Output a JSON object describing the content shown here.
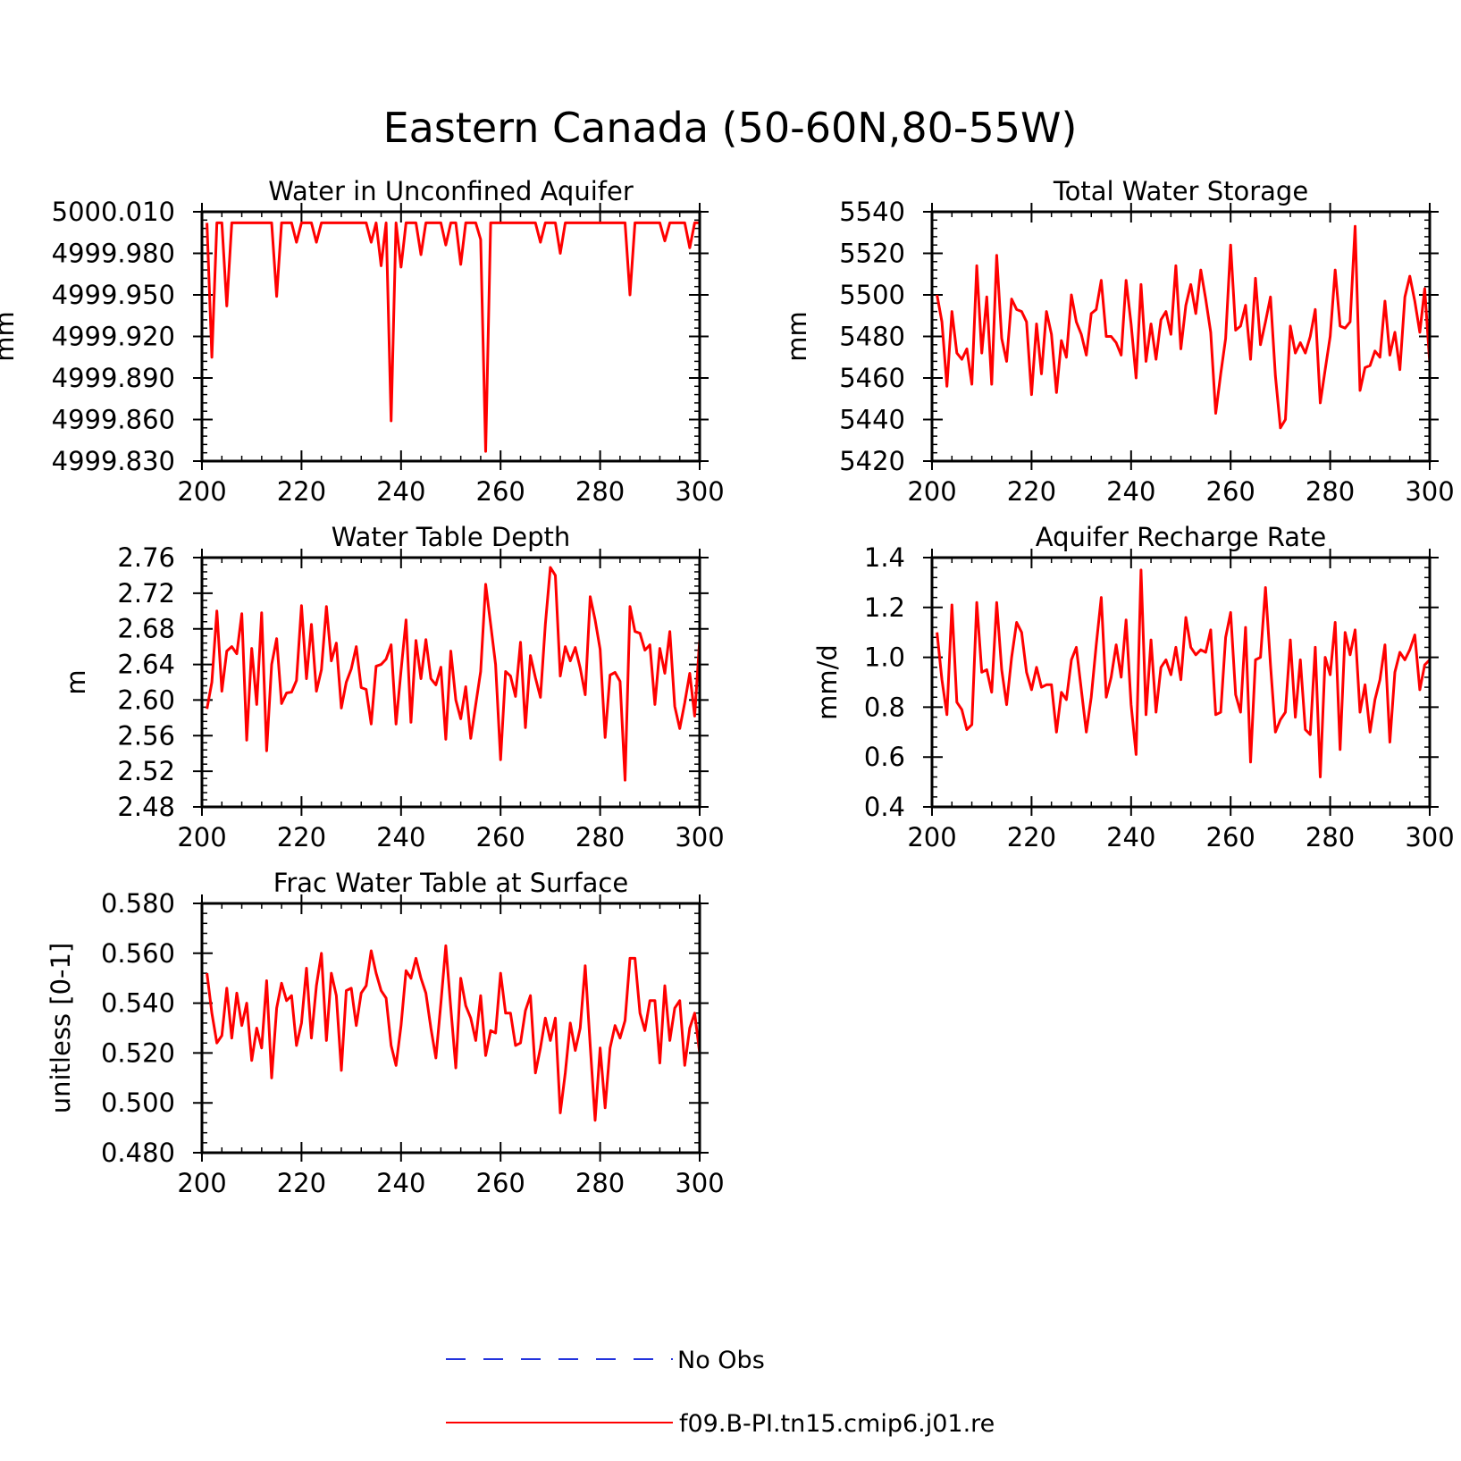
{
  "figure": {
    "title": "Eastern Canada (50-60N,80-55W)"
  },
  "legend": {
    "entries": [
      {
        "label": "No Obs",
        "color": "#2233dd",
        "style": "dashed"
      },
      {
        "label": "f09.B-PI.tn15.cmip6.j01.re",
        "color": "#ff0000",
        "style": "solid"
      }
    ]
  },
  "chart_data": [
    {
      "type": "line",
      "title": "Water in Unconfined Aquifer",
      "ylabel": "mm",
      "xlim": [
        200,
        300
      ],
      "ylim": [
        4999.83,
        5000.01
      ],
      "xticks": [
        200,
        220,
        240,
        260,
        280,
        300
      ],
      "yticks": [
        "5000.010",
        "4999.980",
        "4999.950",
        "4999.920",
        "4999.890",
        "4999.860",
        "4999.830"
      ],
      "ytick_values": [
        5000.01,
        4999.98,
        4999.95,
        4999.92,
        4999.89,
        4999.86,
        4999.83
      ],
      "color": "#ff0000",
      "x_start": 201,
      "values": [
        5000.002,
        4999.905,
        5000.002,
        5000.002,
        4999.942,
        5000.002,
        5000.002,
        5000.002,
        5000.002,
        5000.002,
        5000.002,
        5000.002,
        5000.002,
        5000.002,
        4999.949,
        5000.002,
        5000.002,
        5000.002,
        4999.988,
        5000.002,
        5000.002,
        5000.002,
        4999.988,
        5000.002,
        5000.002,
        5000.002,
        5000.002,
        5000.002,
        5000.002,
        5000.002,
        5000.002,
        5000.002,
        5000.002,
        4999.988,
        5000.002,
        4999.971,
        5000.002,
        4999.859,
        5000.002,
        4999.97,
        5000.002,
        5000.002,
        5000.002,
        4999.979,
        5000.002,
        5000.002,
        5000.002,
        5000.002,
        4999.986,
        5000.002,
        5000.002,
        4999.972,
        5000.002,
        5000.002,
        5000.002,
        4999.99,
        4999.837,
        5000.002,
        5000.002,
        5000.002,
        5000.002,
        5000.002,
        5000.002,
        5000.002,
        5000.002,
        5000.002,
        5000.002,
        4999.988,
        5000.002,
        5000.002,
        5000.002,
        4999.98,
        5000.002,
        5000.002,
        5000.002,
        5000.002,
        5000.002,
        5000.002,
        5000.002,
        5000.002,
        5000.002,
        5000.002,
        5000.002,
        5000.002,
        5000.002,
        4999.95,
        5000.002,
        5000.002,
        5000.002,
        5000.002,
        5000.002,
        5000.002,
        4999.989,
        5000.002,
        5000.002,
        5000.002,
        5000.002,
        4999.984,
        5000.002,
        5000.002
      ]
    },
    {
      "type": "line",
      "title": "Total Water Storage",
      "ylabel": "mm",
      "xlim": [
        200,
        300
      ],
      "ylim": [
        5420,
        5540
      ],
      "xticks": [
        200,
        220,
        240,
        260,
        280,
        300
      ],
      "yticks": [
        "5540",
        "5520",
        "5500",
        "5480",
        "5460",
        "5440",
        "5420"
      ],
      "ytick_values": [
        5540,
        5520,
        5500,
        5480,
        5460,
        5440,
        5420
      ],
      "color": "#ff0000",
      "x_start": 201,
      "values": [
        5500,
        5487,
        5456,
        5492,
        5472,
        5469,
        5474,
        5457,
        5514,
        5472,
        5499,
        5457,
        5519,
        5479,
        5468,
        5498,
        5493,
        5492,
        5487,
        5452,
        5486,
        5462,
        5492,
        5481,
        5453,
        5478,
        5470,
        5500,
        5487,
        5481,
        5471,
        5491,
        5493,
        5507,
        5480,
        5480,
        5477,
        5471,
        5507,
        5486,
        5460,
        5505,
        5468,
        5486,
        5469,
        5488,
        5492,
        5481,
        5514,
        5474,
        5495,
        5505,
        5491,
        5512,
        5498,
        5482,
        5443,
        5462,
        5479,
        5524,
        5483,
        5485,
        5495,
        5469,
        5508,
        5476,
        5487,
        5499,
        5461,
        5436,
        5440,
        5485,
        5472,
        5477,
        5472,
        5480,
        5493,
        5448,
        5464,
        5480,
        5512,
        5485,
        5484,
        5487,
        5533,
        5454,
        5465,
        5466,
        5473,
        5470,
        5497,
        5471,
        5482,
        5464,
        5499,
        5509,
        5497,
        5482,
        5503,
        5467
      ]
    },
    {
      "type": "line",
      "title": "Water Table Depth",
      "ylabel": "m",
      "xlim": [
        200,
        300
      ],
      "ylim": [
        2.48,
        2.76
      ],
      "xticks": [
        200,
        220,
        240,
        260,
        280,
        300
      ],
      "yticks": [
        "2.76",
        "2.72",
        "2.68",
        "2.64",
        "2.60",
        "2.56",
        "2.52",
        "2.48"
      ],
      "ytick_values": [
        2.76,
        2.72,
        2.68,
        2.64,
        2.6,
        2.56,
        2.52,
        2.48
      ],
      "color": "#ff0000",
      "x_start": 201,
      "values": [
        2.59,
        2.62,
        2.7,
        2.61,
        2.655,
        2.66,
        2.652,
        2.697,
        2.555,
        2.658,
        2.595,
        2.698,
        2.543,
        2.64,
        2.669,
        2.596,
        2.608,
        2.609,
        2.622,
        2.706,
        2.624,
        2.685,
        2.61,
        2.634,
        2.705,
        2.644,
        2.664,
        2.591,
        2.62,
        2.635,
        2.66,
        2.614,
        2.612,
        2.573,
        2.638,
        2.64,
        2.646,
        2.662,
        2.573,
        2.633,
        2.69,
        2.575,
        2.667,
        2.624,
        2.668,
        2.624,
        2.617,
        2.637,
        2.556,
        2.655,
        2.6,
        2.579,
        2.615,
        2.557,
        2.595,
        2.632,
        2.73,
        2.685,
        2.64,
        2.533,
        2.632,
        2.627,
        2.604,
        2.665,
        2.569,
        2.65,
        2.625,
        2.603,
        2.685,
        2.749,
        2.74,
        2.627,
        2.66,
        2.644,
        2.659,
        2.636,
        2.606,
        2.716,
        2.69,
        2.657,
        2.558,
        2.628,
        2.631,
        2.621,
        2.51,
        2.705,
        2.677,
        2.675,
        2.656,
        2.662,
        2.595,
        2.658,
        2.63,
        2.677,
        2.593,
        2.568,
        2.597,
        2.63,
        2.582,
        2.668
      ]
    },
    {
      "type": "line",
      "title": "Aquifer Recharge Rate",
      "ylabel": "mm/d",
      "xlim": [
        200,
        300
      ],
      "ylim": [
        0.4,
        1.4
      ],
      "xticks": [
        200,
        220,
        240,
        260,
        280,
        300
      ],
      "yticks": [
        "1.4",
        "1.2",
        "1.0",
        "0.8",
        "0.6",
        "0.4"
      ],
      "ytick_values": [
        1.4,
        1.2,
        1.0,
        0.8,
        0.6,
        0.4
      ],
      "color": "#ff0000",
      "x_start": 201,
      "values": [
        1.1,
        0.91,
        0.77,
        1.21,
        0.82,
        0.79,
        0.71,
        0.73,
        1.22,
        0.94,
        0.95,
        0.86,
        1.22,
        0.95,
        0.81,
        1.0,
        1.14,
        1.1,
        0.94,
        0.87,
        0.96,
        0.88,
        0.89,
        0.89,
        0.7,
        0.86,
        0.83,
        0.99,
        1.04,
        0.87,
        0.7,
        0.84,
        1.05,
        1.24,
        0.84,
        0.92,
        1.05,
        0.92,
        1.15,
        0.81,
        0.61,
        1.35,
        0.77,
        1.07,
        0.78,
        0.96,
        0.99,
        0.93,
        1.04,
        0.91,
        1.16,
        1.04,
        1.01,
        1.03,
        1.02,
        1.11,
        0.77,
        0.78,
        1.08,
        1.18,
        0.85,
        0.78,
        1.12,
        0.58,
        0.99,
        1.0,
        1.28,
        0.97,
        0.7,
        0.75,
        0.78,
        1.07,
        0.76,
        0.99,
        0.71,
        0.69,
        1.04,
        0.52,
        1.0,
        0.93,
        1.14,
        0.63,
        1.1,
        1.01,
        1.11,
        0.78,
        0.89,
        0.7,
        0.83,
        0.91,
        1.05,
        0.66,
        0.94,
        1.02,
        0.99,
        1.03,
        1.09,
        0.87,
        0.97,
        0.99
      ]
    },
    {
      "type": "line",
      "title": "Frac Water Table at Surface",
      "ylabel": "unitless [0-1]",
      "xlim": [
        200,
        300
      ],
      "ylim": [
        0.48,
        0.58
      ],
      "xticks": [
        200,
        220,
        240,
        260,
        280,
        300
      ],
      "yticks": [
        "0.580",
        "0.560",
        "0.540",
        "0.520",
        "0.500",
        "0.480"
      ],
      "ytick_values": [
        0.58,
        0.56,
        0.54,
        0.52,
        0.5,
        0.48
      ],
      "color": "#ff0000",
      "x_start": 201,
      "values": [
        0.552,
        0.536,
        0.524,
        0.527,
        0.546,
        0.526,
        0.544,
        0.531,
        0.54,
        0.517,
        0.53,
        0.522,
        0.549,
        0.51,
        0.538,
        0.548,
        0.541,
        0.543,
        0.523,
        0.532,
        0.554,
        0.526,
        0.547,
        0.56,
        0.525,
        0.552,
        0.543,
        0.513,
        0.545,
        0.546,
        0.531,
        0.544,
        0.547,
        0.561,
        0.552,
        0.545,
        0.542,
        0.523,
        0.515,
        0.531,
        0.553,
        0.55,
        0.558,
        0.55,
        0.544,
        0.53,
        0.518,
        0.54,
        0.563,
        0.538,
        0.514,
        0.55,
        0.539,
        0.534,
        0.525,
        0.543,
        0.519,
        0.529,
        0.528,
        0.552,
        0.536,
        0.536,
        0.523,
        0.524,
        0.537,
        0.543,
        0.512,
        0.522,
        0.534,
        0.525,
        0.534,
        0.496,
        0.512,
        0.532,
        0.521,
        0.53,
        0.555,
        0.523,
        0.493,
        0.522,
        0.498,
        0.522,
        0.531,
        0.526,
        0.533,
        0.558,
        0.558,
        0.536,
        0.529,
        0.541,
        0.541,
        0.516,
        0.547,
        0.525,
        0.538,
        0.541,
        0.515,
        0.53,
        0.536,
        0.52
      ]
    }
  ]
}
